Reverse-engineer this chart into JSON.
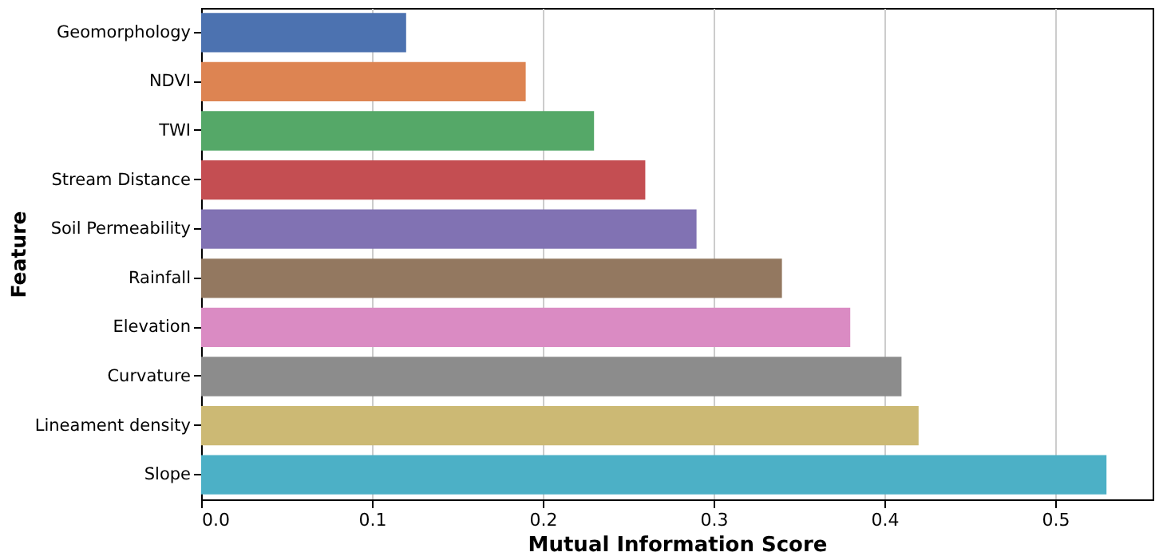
{
  "chart_data": {
    "type": "bar",
    "orientation": "horizontal",
    "xlabel": "Mutual Information Score",
    "ylabel": "Feature",
    "categories": [
      "Geomorphology",
      "NDVI",
      "TWI",
      "Stream Distance",
      "Soil Permeability",
      "Rainfall",
      "Elevation",
      "Curvature",
      "Lineament density",
      "Slope"
    ],
    "values": [
      0.12,
      0.19,
      0.23,
      0.26,
      0.29,
      0.34,
      0.38,
      0.41,
      0.42,
      0.53
    ],
    "colors": [
      "#4c72b0",
      "#dd8452",
      "#55a868",
      "#c44e52",
      "#8172b3",
      "#937860",
      "#da8bc3",
      "#8c8c8c",
      "#ccb974",
      "#4cb0c6"
    ],
    "xlim": [
      0,
      0.557
    ],
    "xticks": [
      {
        "value": 0,
        "label": "0.0"
      },
      0.1,
      0.2,
      0.3,
      0.4,
      0.5
    ],
    "grid": "x"
  }
}
